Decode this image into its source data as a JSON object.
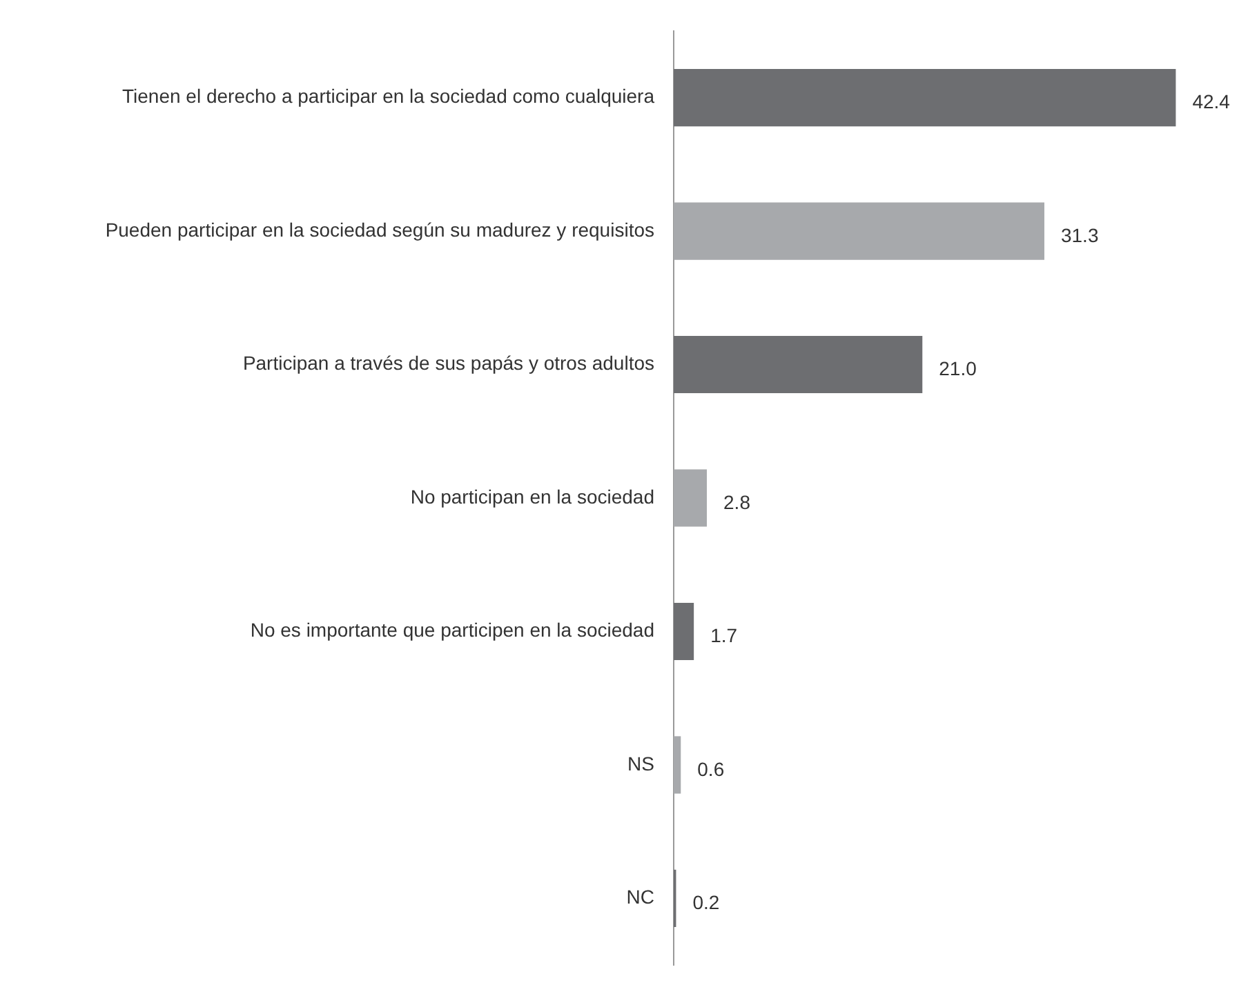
{
  "chart_data": {
    "type": "bar",
    "orientation": "horizontal",
    "categories": [
      "Tienen el derecho a participar en la sociedad como cualquiera",
      "Pueden participar en la sociedad según su madurez y requisitos",
      "Participan a través de sus papás y otros adultos",
      "No participan en la sociedad",
      "No es importante que participen en la sociedad",
      "NS",
      "NC"
    ],
    "values": [
      42.4,
      31.3,
      21.0,
      2.8,
      1.7,
      0.6,
      0.2
    ],
    "value_labels": [
      "42.4",
      "31.3",
      "21.0",
      "2.8",
      "1.7",
      "0.6",
      "0.2"
    ],
    "colors": [
      "#6d6e71",
      "#a7a9ac",
      "#6d6e71",
      "#a7a9ac",
      "#6d6e71",
      "#a7a9ac",
      "#6d6e71"
    ],
    "tick_labels": "y",
    "legend": false,
    "grid": false
  }
}
